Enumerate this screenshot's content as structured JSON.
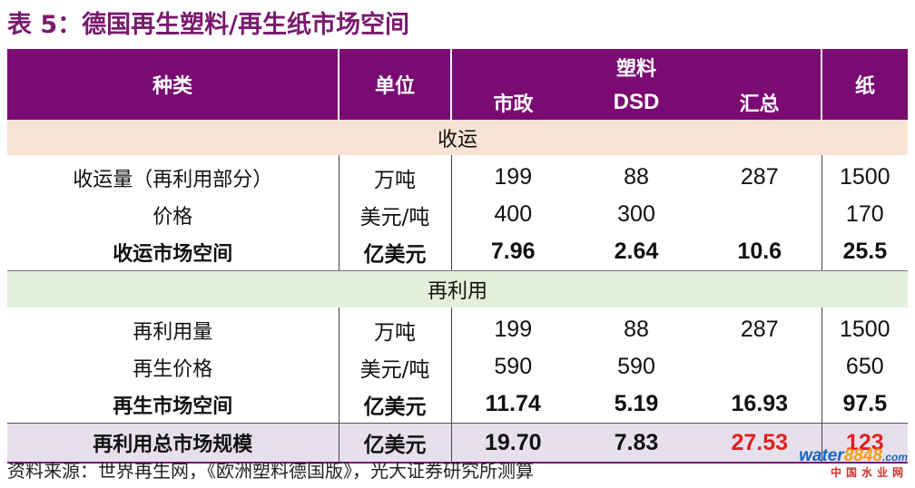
{
  "title": "表 5：德国再生塑料/再生纸市场空间",
  "header": {
    "type": "种类",
    "unit": "单位",
    "plastic": "塑料",
    "municipal": "市政",
    "dsd": "DSD",
    "total": "汇总",
    "paper": "纸"
  },
  "sections": [
    {
      "title": "收运",
      "rows": [
        {
          "label": "收运量（再利用部分）",
          "unit": "万吨",
          "municipal": "199",
          "dsd": "88",
          "total": "287",
          "paper": "1500"
        },
        {
          "label": "价格",
          "unit": "美元/吨",
          "municipal": "400",
          "dsd": "300",
          "total": "",
          "paper": "170"
        },
        {
          "label": "收运市场空间",
          "unit": "亿美元",
          "municipal": "7.96",
          "dsd": "2.64",
          "total": "10.6",
          "paper": "25.5"
        }
      ]
    },
    {
      "title": "再利用",
      "rows": [
        {
          "label": "再利用量",
          "unit": "万吨",
          "municipal": "199",
          "dsd": "88",
          "total": "287",
          "paper": "1500"
        },
        {
          "label": "再生价格",
          "unit": "美元/吨",
          "municipal": "590",
          "dsd": "590",
          "total": "",
          "paper": "650"
        },
        {
          "label": "再生市场空间",
          "unit": "亿美元",
          "municipal": "11.74",
          "dsd": "5.19",
          "total": "16.93",
          "paper": "97.5"
        }
      ]
    }
  ],
  "grand_total": {
    "label": "再利用总市场规模",
    "unit": "亿美元",
    "municipal": "19.70",
    "dsd": "7.83",
    "total": "27.53",
    "paper": "123"
  },
  "source": "资料来源：世界再生网，《欧洲塑料德国版》，光大证券研究所测算",
  "watermark": {
    "brand_blue": "water",
    "brand_orange": "8848",
    "domain": ".com",
    "sub": "中国水业网"
  },
  "colors": {
    "header_bg": "#7b0a72",
    "title": "#7a1a6e",
    "section1_bg": "#f8e4d6",
    "section2_bg": "#e4efdb",
    "total_bg": "#e6e0ec",
    "highlight_red": "#e02020"
  }
}
